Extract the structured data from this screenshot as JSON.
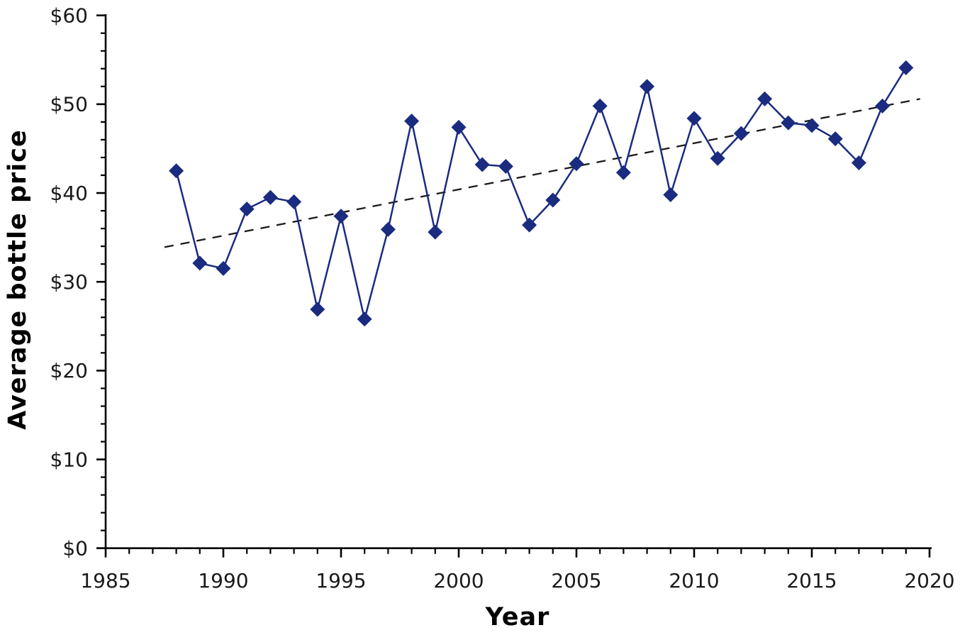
{
  "chart_data": {
    "type": "line",
    "title": "",
    "xlabel": "Year",
    "ylabel": "Average bottle price",
    "xlim": [
      1985,
      2020
    ],
    "ylim": [
      0,
      60
    ],
    "x_major_ticks": [
      1985,
      1990,
      1995,
      2000,
      2005,
      2010,
      2015,
      2020
    ],
    "x_tick_labels": [
      "1985",
      "1990",
      "1995",
      "2000",
      "2005",
      "2010",
      "2015",
      "2020"
    ],
    "x_minor_step": 1,
    "y_major_ticks": [
      0,
      10,
      20,
      30,
      40,
      50,
      60
    ],
    "y_tick_labels": [
      "$0",
      "$10",
      "$20",
      "$30",
      "$40",
      "$50",
      "$60"
    ],
    "y_minor_step": 2,
    "grid": false,
    "legend": false,
    "marker": "diamond",
    "colors": {
      "series": "#1a2b80",
      "trend": "#1a1a1a",
      "axis": "#000000",
      "text": "#1a1a1a"
    },
    "x": [
      1988,
      1989,
      1990,
      1991,
      1992,
      1993,
      1994,
      1995,
      1996,
      1997,
      1998,
      1999,
      2000,
      2001,
      2002,
      2003,
      2004,
      2005,
      2006,
      2007,
      2008,
      2009,
      2010,
      2011,
      2012,
      2013,
      2014,
      2015,
      2016,
      2017,
      2018,
      2019
    ],
    "series": [
      {
        "name": "Average bottle price",
        "values": [
          42.5,
          32.1,
          31.5,
          38.2,
          39.5,
          39.0,
          26.9,
          37.4,
          25.8,
          35.9,
          48.1,
          35.6,
          47.4,
          43.2,
          43.0,
          36.4,
          39.2,
          43.3,
          49.8,
          42.3,
          52.0,
          39.8,
          48.4,
          43.9,
          46.7,
          50.6,
          47.9,
          47.6,
          46.1,
          43.4,
          49.8,
          54.1
        ]
      }
    ],
    "trendline": {
      "name": "linear-trend",
      "style": "dashed",
      "points": [
        [
          1987.5,
          33.9
        ],
        [
          2019.6,
          50.6
        ]
      ]
    }
  }
}
